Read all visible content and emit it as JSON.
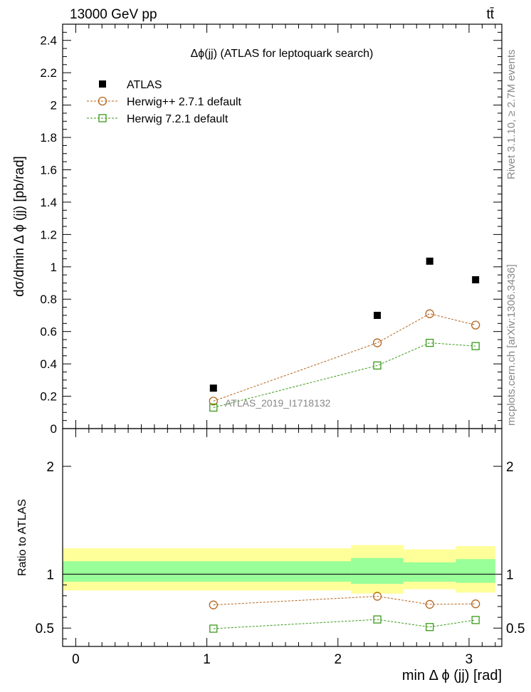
{
  "header": {
    "left": "13000 GeV pp",
    "right": "tt̄"
  },
  "side_labels": {
    "rivet": "Rivet 3.1.10, ≥ 2.7M events",
    "mcplots": "mcplots.cern.ch [arXiv:1306.3436]"
  },
  "chart_data": [
    {
      "type": "scatter",
      "title": "Δϕ(jj) (ATLAS for leptoquark search)",
      "xlabel": "min Δ ϕ (jj) [rad]",
      "ylabel": "dσ/dmin Δ ϕ (jj) [pb/rad]",
      "xlim": [
        -0.1,
        3.25
      ],
      "ylim": [
        0,
        2.5
      ],
      "yticks": [
        "0",
        "0.2",
        "0.4",
        "0.6",
        "0.8",
        "1",
        "1.2",
        "1.4",
        "1.6",
        "1.8",
        "2",
        "2.2",
        "2.4"
      ],
      "analysis_label": "ATLAS_2019_I1718132",
      "legend_position": "top-left",
      "series": [
        {
          "name": "ATLAS",
          "style": "filled-square",
          "color": "#000000",
          "x": [
            1.05,
            2.3,
            2.7,
            3.05
          ],
          "values": [
            0.25,
            0.7,
            1.035,
            0.92
          ]
        },
        {
          "name": "Herwig++ 2.7.1 default",
          "style": "open-circle-dashed",
          "color": "#b5651d",
          "x": [
            1.05,
            2.3,
            2.7,
            3.05
          ],
          "values": [
            0.17,
            0.53,
            0.71,
            0.64
          ]
        },
        {
          "name": "Herwig 7.2.1 default",
          "style": "open-square-dashed",
          "color": "#3a9a1a",
          "x": [
            1.05,
            2.3,
            2.7,
            3.05
          ],
          "values": [
            0.13,
            0.39,
            0.53,
            0.51
          ]
        }
      ]
    },
    {
      "type": "scatter",
      "title": "",
      "xlabel": "min Δ ϕ (jj) [rad]",
      "ylabel": "Ratio to ATLAS",
      "xlim": [
        -0.1,
        3.25
      ],
      "ylim": [
        0.33,
        2.35
      ],
      "yticks": [
        "0.5",
        "1",
        "2"
      ],
      "xticks": [
        "0",
        "1",
        "2",
        "3"
      ],
      "bands": {
        "bins": [
          [
            -0.1,
            2.1
          ],
          [
            2.1,
            2.5
          ],
          [
            2.5,
            2.9
          ],
          [
            2.9,
            3.2
          ]
        ],
        "stat_sys_low": [
          0.85,
          0.82,
          0.86,
          0.83
        ],
        "stat_sys_high": [
          1.24,
          1.27,
          1.23,
          1.26
        ],
        "stat_low": [
          0.93,
          0.91,
          0.93,
          0.92
        ],
        "stat_high": [
          1.12,
          1.15,
          1.11,
          1.14
        ],
        "outer_color": "#ffff99",
        "inner_color": "#99ff99"
      },
      "series": [
        {
          "name": "Herwig++ 2.7.1 default",
          "style": "open-circle-dashed",
          "color": "#b5651d",
          "x": [
            1.05,
            2.3,
            2.7,
            3.05
          ],
          "values": [
            0.715,
            0.795,
            0.72,
            0.725
          ]
        },
        {
          "name": "Herwig 7.2.1 default",
          "style": "open-square-dashed",
          "color": "#3a9a1a",
          "x": [
            1.05,
            2.3,
            2.7,
            3.05
          ],
          "values": [
            0.495,
            0.58,
            0.51,
            0.575
          ]
        }
      ]
    }
  ]
}
